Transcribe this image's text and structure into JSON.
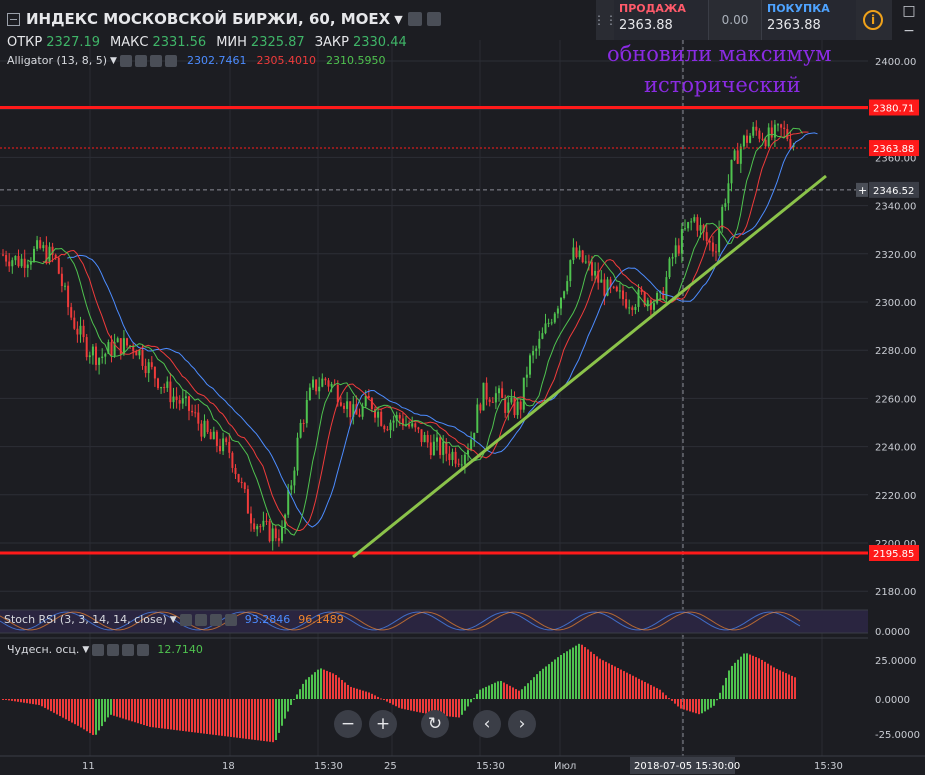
{
  "header": {
    "title": "ИНДЕКС МОСКОВСКОЙ БИРЖИ, 60, MOEX"
  },
  "ohlc": [
    {
      "label": "ОТКР",
      "value": "2327.19"
    },
    {
      "label": "МАКС",
      "value": "2331.56"
    },
    {
      "label": "МИН",
      "value": "2325.87"
    },
    {
      "label": "ЗАКР",
      "value": "2330.44"
    }
  ],
  "alligator": {
    "label": "Alligator (13, 8, 5)",
    "v1": "2302.7461",
    "v2": "2305.4010",
    "v3": "2310.5950"
  },
  "trade": {
    "sell_label": "ПРОДАЖА",
    "sell_price": "2363.88",
    "spread": "0.00",
    "buy_label": "ПОКУПКА",
    "buy_price": "2363.88"
  },
  "annotation": {
    "line1": "обновили максимум",
    "line2": "исторический"
  },
  "price_axis": {
    "ticks": [
      "2400.00",
      "2380.00",
      "2360.00",
      "2340.00",
      "2320.00",
      "2300.00",
      "2280.00",
      "2260.00",
      "2240.00",
      "2220.00",
      "2200.00",
      "2180.00"
    ],
    "label_high": "2380.71",
    "label_last": "2363.88",
    "label_cross": "2346.52",
    "label_low": "2195.85"
  },
  "stoch": {
    "label": "Stoch RSI (3, 3, 14, 14, close)",
    "k": "93.2846",
    "d": "96.1489",
    "axis": "0.0000"
  },
  "ao": {
    "label": "Чудесн. осц.",
    "value": "12.7140",
    "ticks": [
      "25.0000",
      "0.0000",
      "-25.0000"
    ]
  },
  "time_axis": {
    "labels": [
      "11",
      "18",
      "15:30",
      "25",
      "15:30",
      "Июл",
      "15:30"
    ],
    "cursor": "2018-07-05 15:30:00"
  },
  "colors": {
    "bg": "#1c1d22",
    "up": "#4fc24f",
    "down": "#ef3b3b",
    "level": "#ff1a1a",
    "trend": "#8bc34a",
    "jaw": "#4c8cff",
    "teeth": "#ef3b3b",
    "lips": "#4fc24f"
  },
  "chart_data": {
    "type": "candlestick",
    "symbol": "MOEX index",
    "interval": "60",
    "ylim": [
      2180,
      2405
    ],
    "levels": [
      2380.71,
      2195.85
    ],
    "last": 2363.88,
    "cross": 2346.52
  },
  "nav": {
    "zoom_out": "−",
    "zoom_in": "+",
    "reset": "↻",
    "prev": "‹",
    "next": "›"
  }
}
